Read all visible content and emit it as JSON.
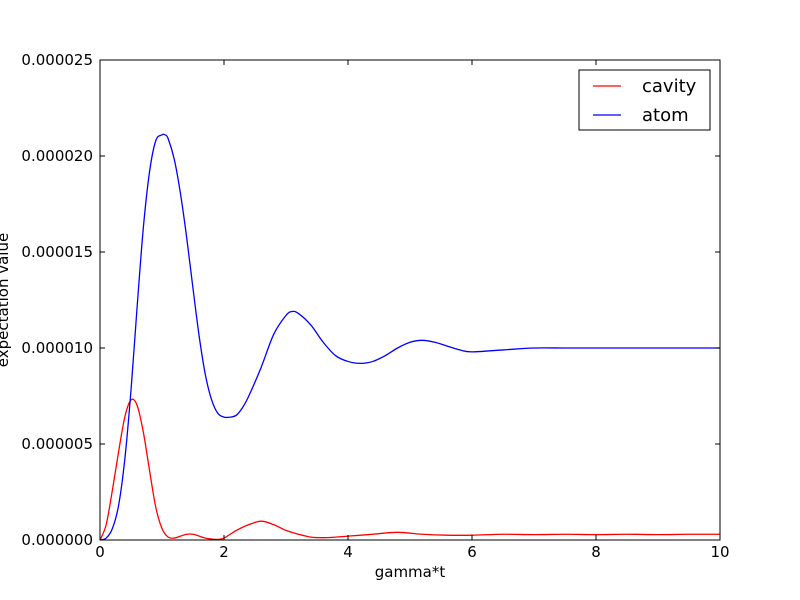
{
  "chart_data": {
    "type": "line",
    "title": "",
    "xlabel": "gamma*t",
    "ylabel": "expectation value",
    "xlim": [
      0,
      10
    ],
    "ylim": [
      0,
      2.5e-05
    ],
    "xticks": [
      0,
      2,
      4,
      6,
      8,
      10
    ],
    "xtick_labels": [
      "0",
      "2",
      "4",
      "6",
      "8",
      "10"
    ],
    "yticks": [
      0,
      5e-06,
      1e-05,
      1.5e-05,
      2e-05,
      2.5e-05
    ],
    "ytick_labels": [
      "0.000000",
      "0.000005",
      "0.000010",
      "0.000015",
      "0.000020",
      "0.000025"
    ],
    "grid": false,
    "legend_position": "top-right",
    "series": [
      {
        "name": "cavity",
        "color": "#ff0000",
        "x": [
          0,
          0.1,
          0.2,
          0.3,
          0.4,
          0.5,
          0.6,
          0.7,
          0.8,
          0.9,
          1.0,
          1.1,
          1.2,
          1.3,
          1.4,
          1.5,
          1.6,
          1.7,
          1.8,
          1.9,
          2.0,
          2.2,
          2.4,
          2.6,
          2.8,
          3.0,
          3.2,
          3.4,
          3.6,
          3.8,
          4.0,
          4.4,
          4.8,
          5.2,
          5.6,
          6.0,
          6.5,
          7.0,
          7.5,
          8.0,
          8.5,
          9.0,
          9.5,
          10.0
        ],
        "y": [
          0,
          8e-07,
          2.6e-06,
          4.6e-06,
          6.4e-06,
          7.3e-06,
          7e-06,
          5.6e-06,
          3.6e-06,
          1.7e-06,
          6e-07,
          1.5e-07,
          1e-07,
          2e-07,
          3e-07,
          3e-07,
          2e-07,
          1e-07,
          5e-08,
          3e-08,
          1e-07,
          5e-07,
          8e-07,
          9.8e-07,
          8e-07,
          5e-07,
          3e-07,
          1.5e-07,
          1.2e-07,
          1.5e-07,
          2e-07,
          3e-07,
          4e-07,
          3e-07,
          2.5e-07,
          2.5e-07,
          3e-07,
          2.8e-07,
          3e-07,
          2.8e-07,
          3e-07,
          2.8e-07,
          3e-07,
          3e-07
        ]
      },
      {
        "name": "atom",
        "color": "#0000ff",
        "x": [
          0,
          0.1,
          0.2,
          0.3,
          0.4,
          0.5,
          0.6,
          0.7,
          0.8,
          0.9,
          1.0,
          1.05,
          1.1,
          1.2,
          1.3,
          1.4,
          1.5,
          1.6,
          1.7,
          1.8,
          1.9,
          2.0,
          2.1,
          2.2,
          2.3,
          2.4,
          2.6,
          2.8,
          3.0,
          3.1,
          3.2,
          3.4,
          3.6,
          3.8,
          4.0,
          4.2,
          4.4,
          4.6,
          4.8,
          5.0,
          5.2,
          5.4,
          5.6,
          5.8,
          6.0,
          6.5,
          7.0,
          7.5,
          8.0,
          8.5,
          9.0,
          9.5,
          10.0
        ],
        "y": [
          0,
          1e-07,
          6e-07,
          1.8e-06,
          4.2e-06,
          7.8e-06,
          1.22e-05,
          1.63e-05,
          1.92e-05,
          2.08e-05,
          2.11e-05,
          2.11e-05,
          2.09e-05,
          1.98e-05,
          1.8e-05,
          1.57e-05,
          1.31e-05,
          1.06e-05,
          8.6e-06,
          7.3e-06,
          6.6e-06,
          6.4e-06,
          6.4e-06,
          6.5e-06,
          6.9e-06,
          7.5e-06,
          9e-06,
          1.07e-05,
          1.17e-05,
          1.19e-05,
          1.18e-05,
          1.12e-05,
          1.03e-05,
          9.6e-06,
          9.3e-06,
          9.2e-06,
          9.3e-06,
          9.6e-06,
          1e-05,
          1.03e-05,
          1.04e-05,
          1.03e-05,
          1.01e-05,
          9.9e-06,
          9.8e-06,
          9.9e-06,
          1e-05,
          1e-05,
          1e-05,
          1e-05,
          1e-05,
          1e-05,
          1e-05
        ]
      }
    ]
  }
}
